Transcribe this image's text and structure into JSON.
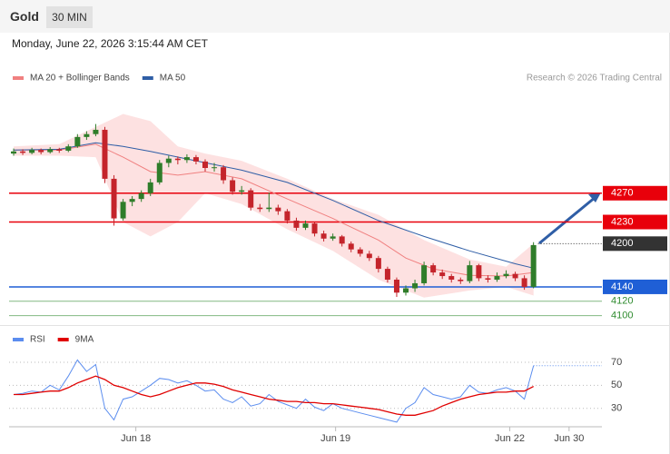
{
  "header": {
    "title": "Gold",
    "interval": "30 MIN",
    "datetime": "Monday, June 22, 2026 3:15:44 AM CET",
    "credit": "Research © 2026 Trading Central"
  },
  "chart_data": [
    {
      "type": "candlestick",
      "up_color": "#2f7d2a",
      "down_color": "#c4242b",
      "xlim": [
        -0.5,
        64.5
      ],
      "ylim": [
        4087,
        4460
      ],
      "candles": [
        [
          4325,
          4332,
          4322,
          4328
        ],
        [
          4328,
          4331,
          4323,
          4326
        ],
        [
          4326,
          4333,
          4324,
          4330
        ],
        [
          4330,
          4332,
          4324,
          4327
        ],
        [
          4327,
          4334,
          4325,
          4331
        ],
        [
          4331,
          4333,
          4326,
          4329
        ],
        [
          4329,
          4338,
          4327,
          4335
        ],
        [
          4335,
          4352,
          4333,
          4348
        ],
        [
          4348,
          4356,
          4344,
          4352
        ],
        [
          4352,
          4366,
          4349,
          4358
        ],
        [
          4358,
          4362,
          4284,
          4290
        ],
        [
          4290,
          4295,
          4225,
          4235
        ],
        [
          4235,
          4262,
          4232,
          4258
        ],
        [
          4258,
          4266,
          4252,
          4262
        ],
        [
          4262,
          4274,
          4258,
          4270
        ],
        [
          4270,
          4290,
          4266,
          4285
        ],
        [
          4285,
          4316,
          4282,
          4312
        ],
        [
          4312,
          4322,
          4306,
          4318
        ],
        [
          4318,
          4321,
          4310,
          4316
        ],
        [
          4316,
          4324,
          4312,
          4320
        ],
        [
          4320,
          4323,
          4310,
          4314
        ],
        [
          4314,
          4317,
          4300,
          4305
        ],
        [
          4305,
          4312,
          4300,
          4306
        ],
        [
          4306,
          4309,
          4283,
          4288
        ],
        [
          4288,
          4292,
          4268,
          4272
        ],
        [
          4272,
          4280,
          4268,
          4274
        ],
        [
          4274,
          4277,
          4246,
          4250
        ],
        [
          4250,
          4255,
          4244,
          4248
        ],
        [
          4248,
          4271,
          4244,
          4250
        ],
        [
          4250,
          4254,
          4240,
          4245
        ],
        [
          4245,
          4248,
          4228,
          4232
        ],
        [
          4232,
          4236,
          4218,
          4222
        ],
        [
          4222,
          4232,
          4219,
          4228
        ],
        [
          4228,
          4230,
          4210,
          4214
        ],
        [
          4214,
          4218,
          4203,
          4207
        ],
        [
          4207,
          4214,
          4204,
          4210
        ],
        [
          4210,
          4212,
          4196,
          4200
        ],
        [
          4200,
          4203,
          4188,
          4192
        ],
        [
          4192,
          4195,
          4182,
          4186
        ],
        [
          4186,
          4190,
          4176,
          4180
        ],
        [
          4180,
          4183,
          4160,
          4165
        ],
        [
          4165,
          4168,
          4146,
          4150
        ],
        [
          4150,
          4153,
          4126,
          4132
        ],
        [
          4132,
          4142,
          4128,
          4138
        ],
        [
          4138,
          4150,
          4133,
          4145
        ],
        [
          4145,
          4175,
          4142,
          4170
        ],
        [
          4170,
          4173,
          4156,
          4160
        ],
        [
          4160,
          4164,
          4151,
          4155
        ],
        [
          4155,
          4158,
          4146,
          4150
        ],
        [
          4150,
          4153,
          4144,
          4148
        ],
        [
          4148,
          4176,
          4145,
          4170
        ],
        [
          4170,
          4172,
          4148,
          4152
        ],
        [
          4152,
          4156,
          4146,
          4150
        ],
        [
          4150,
          4160,
          4147,
          4155
        ],
        [
          4155,
          4163,
          4152,
          4158
        ],
        [
          4158,
          4161,
          4148,
          4152
        ],
        [
          4152,
          4156,
          4136,
          4140
        ],
        [
          4140,
          4202,
          4138,
          4198
        ]
      ],
      "bands": {
        "color": "#fddcdc",
        "x": [
          0,
          5,
          9,
          12,
          15,
          18,
          21,
          25,
          30,
          35,
          40,
          45,
          50,
          54,
          57
        ],
        "upper": [
          4335,
          4338,
          4362,
          4380,
          4370,
          4335,
          4325,
          4315,
          4290,
          4262,
          4240,
          4205,
          4178,
          4168,
          4200
        ],
        "lower": [
          4322,
          4322,
          4320,
          4230,
          4210,
          4230,
          4270,
          4255,
          4220,
          4190,
          4150,
          4125,
          4135,
          4140,
          4128
        ]
      },
      "series": [
        {
          "name": "MA 20 + Bollinger Bands",
          "color": "#f08080",
          "x": [
            0,
            5,
            9,
            12,
            15,
            18,
            21,
            25,
            30,
            35,
            40,
            43,
            46,
            50,
            54,
            57
          ],
          "values": [
            4330,
            4330,
            4338,
            4320,
            4300,
            4295,
            4300,
            4290,
            4262,
            4235,
            4205,
            4180,
            4165,
            4156,
            4155,
            4160
          ]
        },
        {
          "name": "MA 50",
          "color": "#2f5ea6",
          "x": [
            0,
            5,
            9,
            12,
            15,
            20,
            25,
            30,
            35,
            40,
            45,
            50,
            55,
            57
          ],
          "values": [
            4330,
            4331,
            4340,
            4335,
            4328,
            4315,
            4302,
            4285,
            4260,
            4232,
            4210,
            4190,
            4172,
            4166
          ]
        }
      ],
      "levels": [
        {
          "value": 4270,
          "color": "#e8000b",
          "line": "solid",
          "style": "box"
        },
        {
          "value": 4230,
          "color": "#e8000b",
          "line": "solid",
          "style": "box"
        },
        {
          "value": 4200,
          "color": "#333333",
          "line": "dotted",
          "style": "box"
        },
        {
          "value": 4140,
          "color": "#1f5fd6",
          "line": "solid",
          "style": "box"
        },
        {
          "value": 4120,
          "color": "#2e8b2e",
          "line": "thin",
          "style": "text"
        },
        {
          "value": 4100,
          "color": "#2e8b2e",
          "line": "thin",
          "style": "text"
        }
      ]
    },
    {
      "type": "line",
      "xlim": [
        -0.5,
        64.5
      ],
      "ylim": [
        14,
        81
      ],
      "yticks": [
        30,
        50,
        70
      ],
      "grid": true,
      "xticks": [
        {
          "value": 13.4,
          "label": "Jun 18"
        },
        {
          "value": 35.3,
          "label": "Jun 19"
        },
        {
          "value": 54.4,
          "label": "Jun 22"
        },
        {
          "value": 60.9,
          "label": "Jun 30"
        }
      ],
      "series": [
        {
          "name": "RSI",
          "color": "#5b8def",
          "values": [
            42,
            43,
            45,
            44,
            50,
            46,
            58,
            72,
            62,
            68,
            30,
            20,
            38,
            40,
            45,
            50,
            56,
            55,
            52,
            54,
            50,
            45,
            46,
            38,
            35,
            40,
            32,
            34,
            42,
            36,
            33,
            30,
            38,
            31,
            28,
            34,
            30,
            28,
            26,
            24,
            22,
            20,
            18,
            30,
            35,
            48,
            42,
            40,
            38,
            40,
            50,
            44,
            43,
            46,
            48,
            45,
            38,
            67
          ]
        },
        {
          "name": "9MA",
          "color": "#e00000",
          "values": [
            42,
            42,
            43,
            44,
            45,
            45,
            48,
            52,
            55,
            58,
            55,
            50,
            48,
            45,
            42,
            40,
            42,
            45,
            48,
            50,
            52,
            52,
            51,
            49,
            46,
            44,
            42,
            40,
            38,
            37,
            36,
            36,
            35,
            35,
            34,
            34,
            33,
            32,
            31,
            30,
            29,
            27,
            25,
            24,
            24,
            26,
            28,
            32,
            35,
            38,
            40,
            42,
            43,
            44,
            44,
            45,
            45,
            49
          ]
        }
      ]
    }
  ]
}
